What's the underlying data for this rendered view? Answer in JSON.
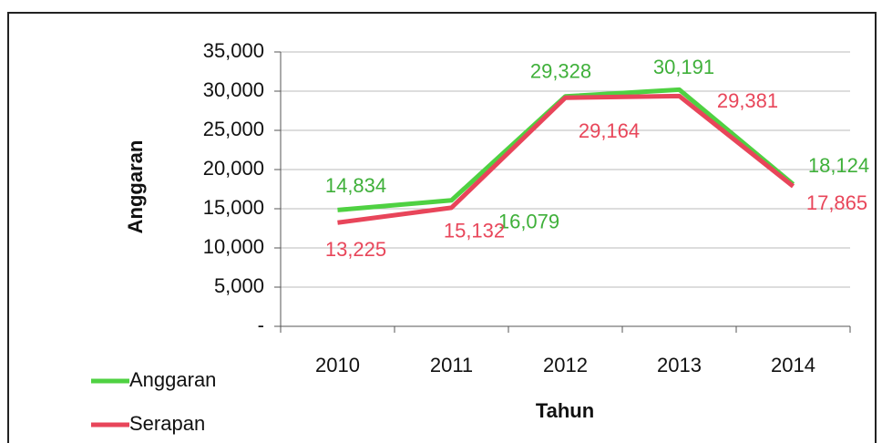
{
  "chart_data": {
    "type": "line",
    "categories": [
      "2010",
      "2011",
      "2012",
      "2013",
      "2014"
    ],
    "series": [
      {
        "name": "Anggaran",
        "color": "#4fd142",
        "label_color": "#3fb03a",
        "values": [
          14834,
          16079,
          29328,
          30191,
          18124
        ],
        "value_labels": [
          "14,834",
          "16,079",
          "29,328",
          "30,191",
          "18,124"
        ]
      },
      {
        "name": "Serapan",
        "color": "#e8455a",
        "label_color": "#e8465a",
        "values": [
          13225,
          15132,
          29164,
          29381,
          17865
        ],
        "value_labels": [
          "13,225",
          "15,132",
          "29,164",
          "29,381",
          "17,865"
        ]
      }
    ],
    "ylabel": "Anggaran",
    "xlabel": "Tahun",
    "ylim": [
      0,
      35000
    ],
    "yticks": [
      {
        "value": 0,
        "label": "-"
      },
      {
        "value": 5000,
        "label": "5,000"
      },
      {
        "value": 10000,
        "label": "10,000"
      },
      {
        "value": 15000,
        "label": "15,000"
      },
      {
        "value": 20000,
        "label": "20,000"
      },
      {
        "value": 25000,
        "label": "25,000"
      },
      {
        "value": 30000,
        "label": "30,000"
      },
      {
        "value": 35000,
        "label": "35,000"
      }
    ],
    "grid": true,
    "legend": "bottom-left"
  }
}
